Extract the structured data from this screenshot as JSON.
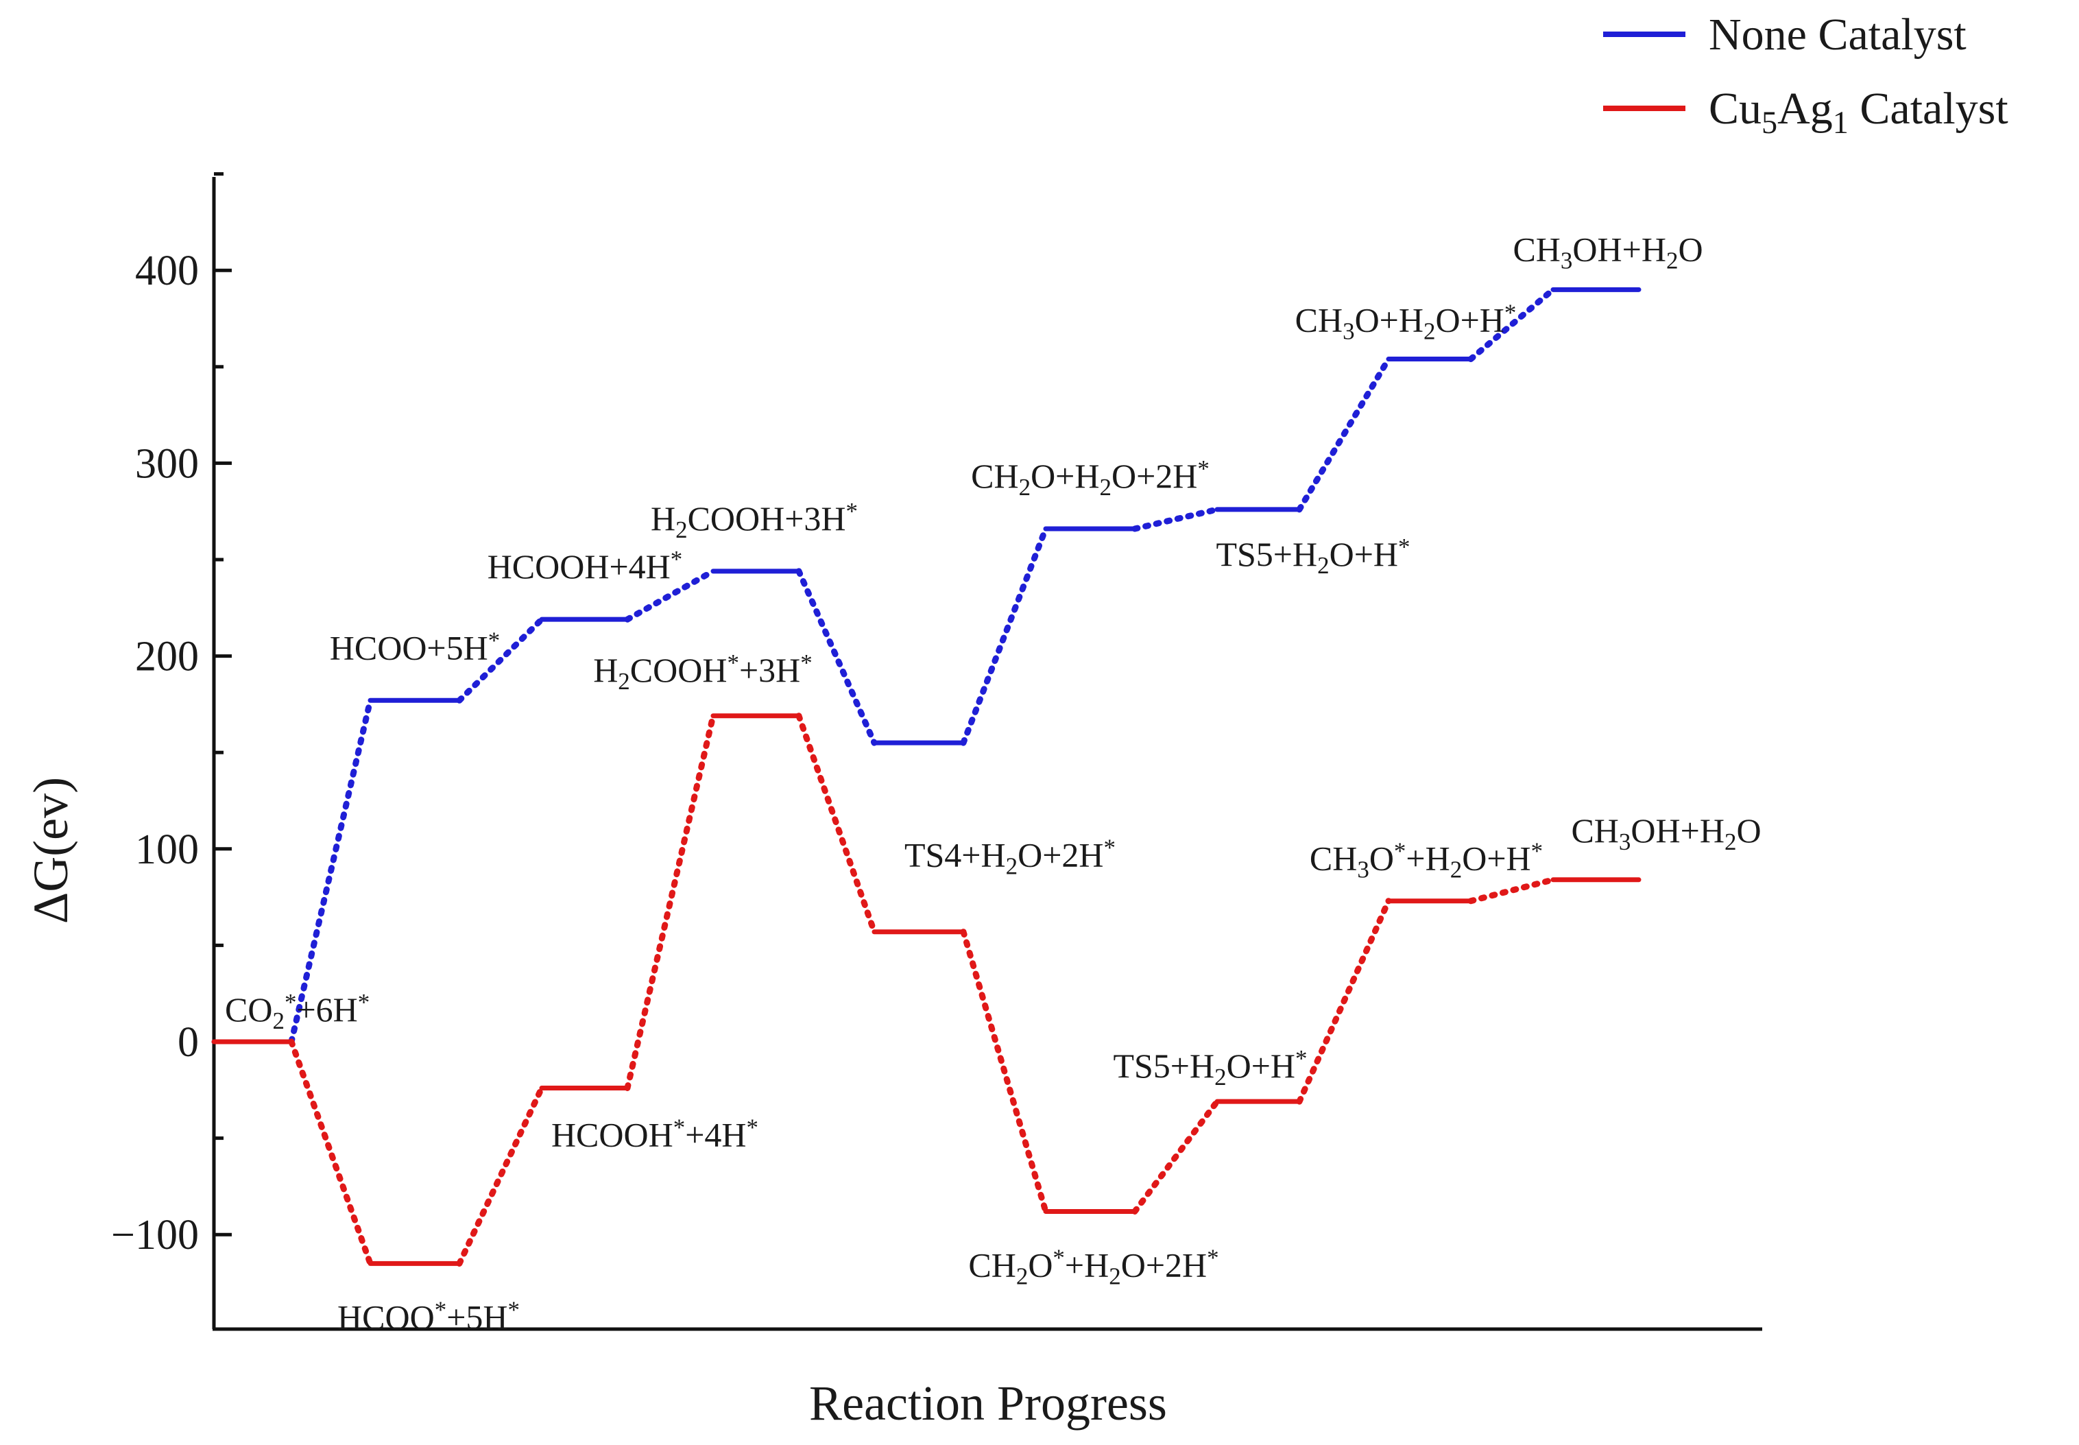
{
  "chart_data": {
    "type": "line",
    "title": "",
    "xlabel": "Reaction Progress",
    "ylabel": "ΔG(ev)",
    "ylim": [
      -150,
      450
    ],
    "yticks": [
      -100,
      0,
      100,
      200,
      300,
      400
    ],
    "ytick_labels": [
      "−100",
      "0",
      "100",
      "200",
      "300",
      "400"
    ],
    "x_stages": 9,
    "legend_position": "top-right",
    "series": [
      {
        "name": "None Catalyst",
        "color": "#1f1fd6",
        "legend_label": {
          "main": "None Catalyst"
        },
        "values": [
          0,
          177,
          219,
          244,
          155,
          266,
          276,
          354,
          390
        ],
        "labels": [
          null,
          {
            "parts": [
              [
                "HCOO+5H"
              ],
              [
                "*",
                "sup"
              ]
            ]
          },
          {
            "parts": [
              [
                "HCOOH+4H"
              ],
              [
                "*",
                "sup"
              ]
            ]
          },
          {
            "parts": [
              [
                "H"
              ],
              [
                "2",
                "sub"
              ],
              [
                "COOH+3H"
              ],
              [
                "*",
                "sup"
              ]
            ]
          },
          null,
          {
            "parts": [
              [
                "CH"
              ],
              [
                "2",
                "sub"
              ],
              [
                "O+H"
              ],
              [
                "2",
                "sub"
              ],
              [
                "O+2H"
              ],
              [
                "*",
                "sup"
              ]
            ]
          },
          {
            "parts": [
              [
                "TS5+H"
              ],
              [
                "2",
                "sub"
              ],
              [
                "O+H"
              ],
              [
                "*",
                "sup"
              ]
            ]
          },
          {
            "parts": [
              [
                "CH"
              ],
              [
                "3",
                "sub"
              ],
              [
                "O+H"
              ],
              [
                "2",
                "sub"
              ],
              [
                "O+H"
              ],
              [
                "*",
                "sup"
              ]
            ]
          },
          {
            "parts": [
              [
                "CH"
              ],
              [
                "3",
                "sub"
              ],
              [
                "OH+H"
              ],
              [
                "2",
                "sub"
              ],
              [
                "O"
              ]
            ]
          }
        ]
      },
      {
        "name": "Cu5Ag1 Catalyst",
        "color": "#e01818",
        "legend_label": {
          "parts": [
            [
              "Cu"
            ],
            [
              "5",
              "sub"
            ],
            [
              "Ag"
            ],
            [
              "1",
              "sub"
            ],
            [
              " Catalyst"
            ]
          ]
        },
        "values": [
          0,
          -115,
          -24,
          169,
          57,
          -88,
          -31,
          73,
          84
        ],
        "labels": [
          {
            "parts": [
              [
                "CO"
              ],
              [
                "2",
                "sub"
              ],
              [
                "*",
                "sup"
              ],
              [
                "+6H"
              ],
              [
                "*",
                "sup"
              ]
            ]
          },
          {
            "parts": [
              [
                "HCOO"
              ],
              [
                "*",
                "sup"
              ],
              [
                "+5H"
              ],
              [
                "*",
                "sup"
              ]
            ]
          },
          {
            "parts": [
              [
                "HCOOH"
              ],
              [
                "*",
                "sup"
              ],
              [
                "+4H"
              ],
              [
                "*",
                "sup"
              ]
            ]
          },
          {
            "parts": [
              [
                "H"
              ],
              [
                "2",
                "sub"
              ],
              [
                "COOH"
              ],
              [
                "*",
                "sup"
              ],
              [
                "+3H"
              ],
              [
                "*",
                "sup"
              ]
            ]
          },
          {
            "parts": [
              [
                "TS4+H"
              ],
              [
                "2",
                "sub"
              ],
              [
                "O+2H"
              ],
              [
                "*",
                "sup"
              ]
            ]
          },
          {
            "parts": [
              [
                "CH"
              ],
              [
                "2",
                "sub"
              ],
              [
                "O"
              ],
              [
                "*",
                "sup"
              ],
              [
                "+H"
              ],
              [
                "2",
                "sub"
              ],
              [
                "O+2H"
              ],
              [
                "*",
                "sup"
              ]
            ]
          },
          {
            "parts": [
              [
                "TS5+H"
              ],
              [
                "2",
                "sub"
              ],
              [
                "O+H"
              ],
              [
                "*",
                "sup"
              ]
            ]
          },
          {
            "parts": [
              [
                "CH"
              ],
              [
                "3",
                "sub"
              ],
              [
                "O"
              ],
              [
                "*",
                "sup"
              ],
              [
                "+H"
              ],
              [
                "2",
                "sub"
              ],
              [
                "O+H"
              ],
              [
                "*",
                "sup"
              ]
            ]
          },
          {
            "parts": [
              [
                "CH"
              ],
              [
                "3",
                "sub"
              ],
              [
                "OH+H"
              ],
              [
                "2",
                "sub"
              ],
              [
                "O"
              ]
            ]
          }
        ]
      }
    ]
  }
}
